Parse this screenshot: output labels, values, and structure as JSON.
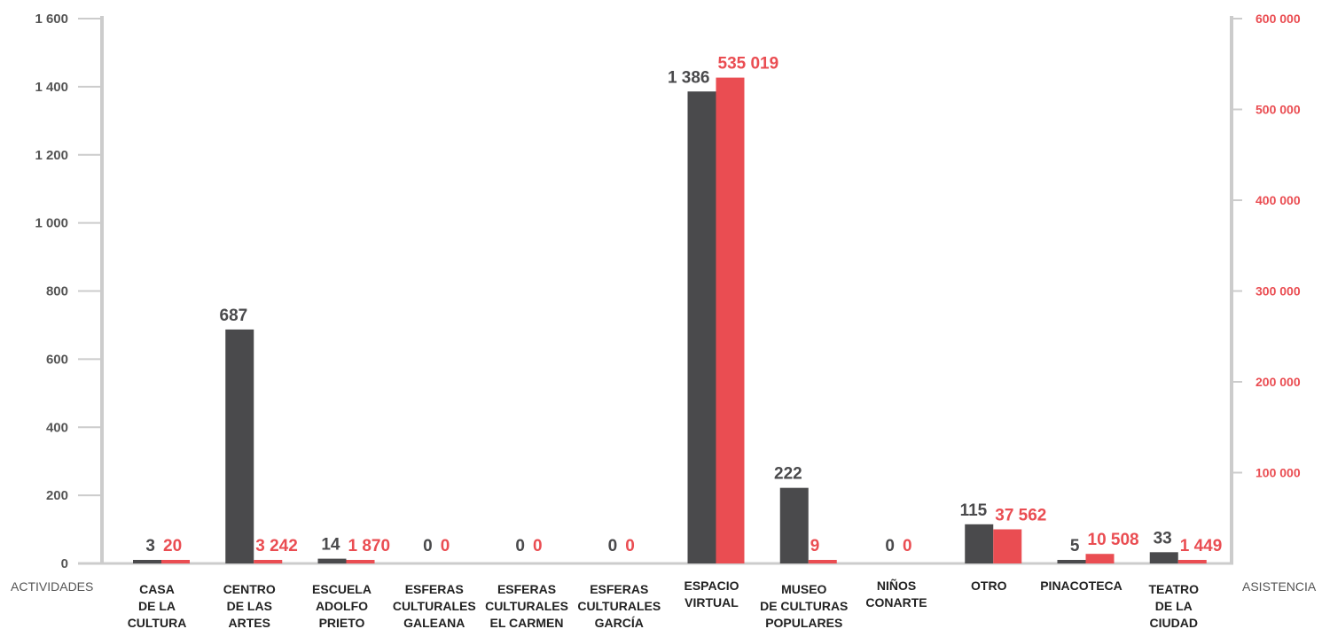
{
  "chart_data": {
    "type": "bar",
    "categories": [
      [
        "CASA",
        "DE LA",
        "CULTURA"
      ],
      [
        "CENTRO",
        "DE LAS",
        "ARTES"
      ],
      [
        "ESCUELA",
        "ADOLFO",
        "PRIETO"
      ],
      [
        "ESFERAS",
        "CULTURALES",
        "GALEANA"
      ],
      [
        "ESFERAS",
        "CULTURALES",
        "EL CARMEN"
      ],
      [
        "ESFERAS",
        "CULTURALES",
        "GARCÍA"
      ],
      [
        "ESPACIO",
        "VIRTUAL"
      ],
      [
        "MUSEO",
        "DE CULTURAS",
        "POPULARES"
      ],
      [
        "NIÑOS",
        "CONARTE"
      ],
      [
        "OTRO"
      ],
      [
        "PINACOTECA"
      ],
      [
        "TEATRO",
        "DE LA",
        "CIUDAD"
      ]
    ],
    "series": [
      {
        "name": "ACTIVIDADES",
        "axis": "left",
        "values": [
          3,
          687,
          14,
          0,
          0,
          0,
          1386,
          222,
          0,
          115,
          5,
          33
        ],
        "labels": [
          "3",
          "687",
          "14",
          "0",
          "0",
          "0",
          "1 386",
          "222",
          "0",
          "115",
          "5",
          "33"
        ]
      },
      {
        "name": "ASISTENCIA",
        "axis": "right",
        "values": [
          20,
          3242,
          1870,
          0,
          0,
          0,
          535019,
          9,
          0,
          37562,
          10508,
          1449
        ],
        "labels": [
          "20",
          "3 242",
          "1 870",
          "0",
          "0",
          "0",
          "535 019",
          "9",
          "0",
          "37 562",
          "10 508",
          "1 449"
        ]
      }
    ],
    "left_axis": {
      "title": "ACTIVIDADES",
      "ylim": [
        0,
        1600
      ],
      "ticks": [
        0,
        200,
        400,
        600,
        800,
        1000,
        1200,
        1400,
        1600
      ],
      "tick_labels": [
        "0",
        "200",
        "400",
        "600",
        "800",
        "1 000",
        "1 200",
        "1 400",
        "1 600"
      ]
    },
    "right_axis": {
      "title": "ASISTENCIA",
      "ylim": [
        0,
        600000
      ],
      "ticks": [
        100000,
        200000,
        300000,
        400000,
        500000,
        600000
      ],
      "tick_labels": [
        "100 000",
        "200 000",
        "300 000",
        "400 000",
        "500 000",
        "600 000"
      ]
    },
    "grid": false,
    "legend": "none"
  },
  "colors": {
    "actividades": "#4a4a4c",
    "asistencia": "#ea4d52",
    "axis": "#cccccc",
    "left_ticks": "#555555",
    "right_ticks": "#ea4d52"
  }
}
